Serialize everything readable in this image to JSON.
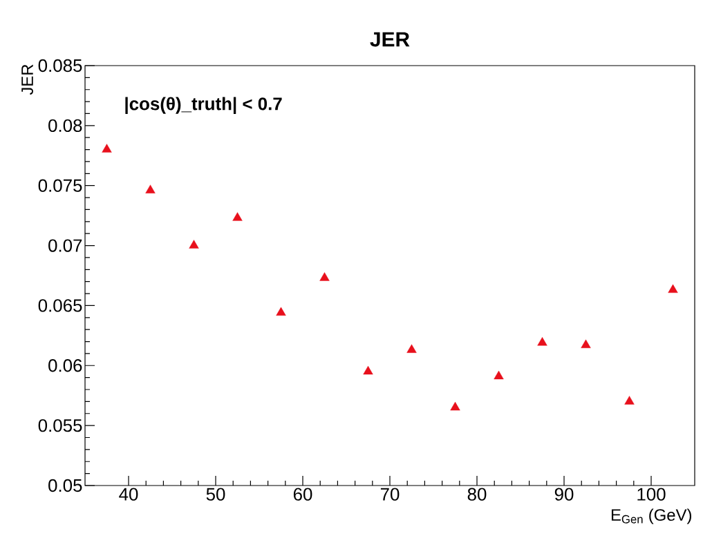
{
  "chart_data": {
    "type": "scatter",
    "title": "JER",
    "xlabel": "E$_{Gen}$ (GeV)",
    "ylabel": "JER",
    "annotations": [
      "|cos(θ)_truth| < 0.7"
    ],
    "x": [
      37.5,
      42.5,
      47.5,
      52.5,
      57.5,
      62.5,
      67.5,
      72.5,
      77.5,
      82.5,
      87.5,
      92.5,
      97.5,
      102.5
    ],
    "series": [
      {
        "color": "#e8101c",
        "values": [
          0.078,
          0.0746,
          0.07,
          0.0723,
          0.0644,
          0.0673,
          0.0595,
          0.0613,
          0.0565,
          0.0591,
          0.0619,
          0.0617,
          0.057,
          0.0663
        ]
      }
    ],
    "xlim": [
      35,
      105
    ],
    "ylim": [
      0.05,
      0.085
    ],
    "xticks": [
      40,
      50,
      60,
      70,
      80,
      90,
      100
    ],
    "yticks": [
      0.05,
      0.055,
      0.06,
      0.065,
      0.07,
      0.075,
      0.08,
      0.085
    ],
    "marker": "triangle",
    "grid": false
  }
}
